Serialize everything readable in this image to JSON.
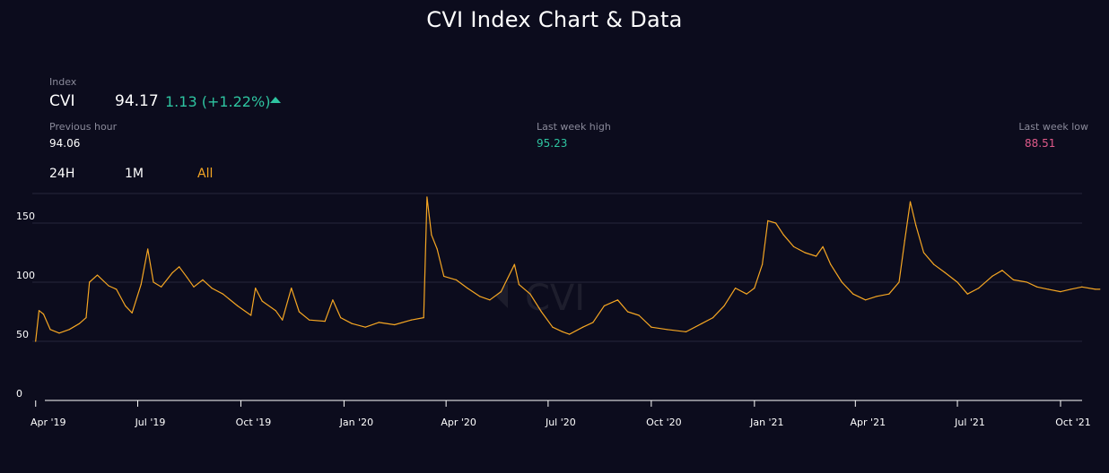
{
  "header": {
    "title": "CVI Index Chart & Data"
  },
  "index": {
    "label": "Index",
    "name": "CVI",
    "value": "94.17",
    "change": "1.13 (+1.22%)"
  },
  "stats": {
    "previous_hour": {
      "label": "Previous hour",
      "value": "94.06"
    },
    "last_week_high": {
      "label": "Last week high",
      "value": "95.23",
      "color": "#2ec4a0"
    },
    "last_week_low": {
      "label": "Last week low",
      "value": "88.51",
      "color": "#e05a8a"
    }
  },
  "ranges": [
    {
      "label": "24H",
      "active": false
    },
    {
      "label": "1M",
      "active": false
    },
    {
      "label": "All",
      "active": true
    }
  ],
  "colors": {
    "line": "#f5a623",
    "up": "#2ec4a0",
    "down": "#e05a8a"
  },
  "watermark": "CVI",
  "chart_data": {
    "type": "line",
    "title": "",
    "xlabel": "",
    "ylabel": "",
    "ylim": [
      0,
      175
    ],
    "xlim": [
      "2019-03-29",
      "2021-11-10"
    ],
    "y_ticks": [
      "0",
      "50",
      "100",
      "150"
    ],
    "x_ticks": [
      {
        "date": "2019-04-01",
        "label": "Apr '19"
      },
      {
        "date": "2019-07-01",
        "label": "Jul '19"
      },
      {
        "date": "2019-10-01",
        "label": "Oct '19"
      },
      {
        "date": "2020-01-01",
        "label": "Jan '20"
      },
      {
        "date": "2020-04-01",
        "label": "Apr '20"
      },
      {
        "date": "2020-07-01",
        "label": "Jul '20"
      },
      {
        "date": "2020-10-01",
        "label": "Oct '20"
      },
      {
        "date": "2021-01-01",
        "label": "Jan '21"
      },
      {
        "date": "2021-04-01",
        "label": "Apr '21"
      },
      {
        "date": "2021-07-01",
        "label": "Jul '21"
      },
      {
        "date": "2021-10-01",
        "label": "Oct '21"
      }
    ],
    "grid": true,
    "series": [
      {
        "points": [
          [
            "2019-04-01",
            50
          ],
          [
            "2019-04-04",
            76
          ],
          [
            "2019-04-08",
            73
          ],
          [
            "2019-04-14",
            60
          ],
          [
            "2019-04-22",
            57
          ],
          [
            "2019-05-01",
            60
          ],
          [
            "2019-05-10",
            65
          ],
          [
            "2019-05-16",
            70
          ],
          [
            "2019-05-19",
            100
          ],
          [
            "2019-05-26",
            106
          ],
          [
            "2019-06-05",
            97
          ],
          [
            "2019-06-12",
            94
          ],
          [
            "2019-06-20",
            80
          ],
          [
            "2019-06-26",
            74
          ],
          [
            "2019-07-04",
            98
          ],
          [
            "2019-07-10",
            128
          ],
          [
            "2019-07-15",
            100
          ],
          [
            "2019-07-22",
            96
          ],
          [
            "2019-08-01",
            108
          ],
          [
            "2019-08-07",
            113
          ],
          [
            "2019-08-14",
            104
          ],
          [
            "2019-08-20",
            96
          ],
          [
            "2019-08-28",
            102
          ],
          [
            "2019-09-05",
            95
          ],
          [
            "2019-09-15",
            90
          ],
          [
            "2019-09-28",
            80
          ],
          [
            "2019-10-10",
            72
          ],
          [
            "2019-10-14",
            95
          ],
          [
            "2019-10-20",
            84
          ],
          [
            "2019-11-01",
            76
          ],
          [
            "2019-11-07",
            68
          ],
          [
            "2019-11-15",
            95
          ],
          [
            "2019-11-22",
            75
          ],
          [
            "2019-12-01",
            68
          ],
          [
            "2019-12-15",
            67
          ],
          [
            "2019-12-22",
            85
          ],
          [
            "2019-12-29",
            70
          ],
          [
            "2020-01-08",
            65
          ],
          [
            "2020-01-20",
            62
          ],
          [
            "2020-02-01",
            66
          ],
          [
            "2020-02-15",
            64
          ],
          [
            "2020-03-01",
            68
          ],
          [
            "2020-03-12",
            70
          ],
          [
            "2020-03-15",
            172
          ],
          [
            "2020-03-19",
            140
          ],
          [
            "2020-03-24",
            128
          ],
          [
            "2020-03-30",
            105
          ],
          [
            "2020-04-10",
            102
          ],
          [
            "2020-04-20",
            95
          ],
          [
            "2020-05-01",
            88
          ],
          [
            "2020-05-10",
            85
          ],
          [
            "2020-05-20",
            92
          ],
          [
            "2020-06-01",
            115
          ],
          [
            "2020-06-05",
            98
          ],
          [
            "2020-06-15",
            90
          ],
          [
            "2020-06-25",
            75
          ],
          [
            "2020-07-05",
            62
          ],
          [
            "2020-07-14",
            58
          ],
          [
            "2020-07-20",
            56
          ],
          [
            "2020-08-01",
            62
          ],
          [
            "2020-08-10",
            66
          ],
          [
            "2020-08-20",
            80
          ],
          [
            "2020-09-01",
            85
          ],
          [
            "2020-09-10",
            75
          ],
          [
            "2020-09-20",
            72
          ],
          [
            "2020-10-01",
            62
          ],
          [
            "2020-10-15",
            60
          ],
          [
            "2020-11-01",
            58
          ],
          [
            "2020-11-15",
            65
          ],
          [
            "2020-11-25",
            70
          ],
          [
            "2020-12-05",
            80
          ],
          [
            "2020-12-15",
            95
          ],
          [
            "2020-12-25",
            90
          ],
          [
            "2021-01-01",
            95
          ],
          [
            "2021-01-08",
            115
          ],
          [
            "2021-01-13",
            152
          ],
          [
            "2021-01-20",
            150
          ],
          [
            "2021-01-27",
            140
          ],
          [
            "2021-02-05",
            130
          ],
          [
            "2021-02-15",
            125
          ],
          [
            "2021-02-25",
            122
          ],
          [
            "2021-03-03",
            130
          ],
          [
            "2021-03-10",
            115
          ],
          [
            "2021-03-20",
            100
          ],
          [
            "2021-03-30",
            90
          ],
          [
            "2021-04-10",
            85
          ],
          [
            "2021-04-20",
            88
          ],
          [
            "2021-05-01",
            90
          ],
          [
            "2021-05-10",
            100
          ],
          [
            "2021-05-15",
            135
          ],
          [
            "2021-05-20",
            168
          ],
          [
            "2021-05-25",
            148
          ],
          [
            "2021-06-01",
            125
          ],
          [
            "2021-06-10",
            115
          ],
          [
            "2021-06-20",
            108
          ],
          [
            "2021-07-01",
            100
          ],
          [
            "2021-07-10",
            90
          ],
          [
            "2021-07-20",
            95
          ],
          [
            "2021-08-01",
            105
          ],
          [
            "2021-08-10",
            110
          ],
          [
            "2021-08-20",
            102
          ],
          [
            "2021-09-01",
            100
          ],
          [
            "2021-09-10",
            96
          ],
          [
            "2021-09-20",
            94
          ],
          [
            "2021-10-01",
            92
          ],
          [
            "2021-10-10",
            94
          ],
          [
            "2021-10-20",
            96
          ],
          [
            "2021-11-01",
            94
          ],
          [
            "2021-11-05",
            94
          ]
        ]
      }
    ]
  }
}
